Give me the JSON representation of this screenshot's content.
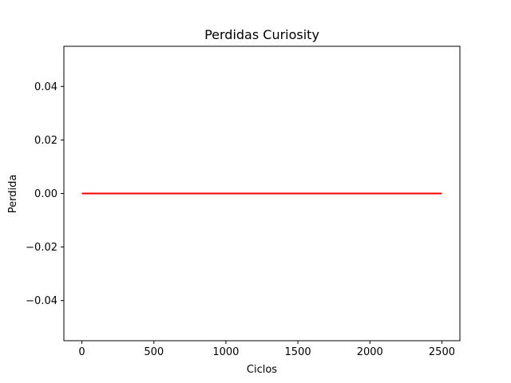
{
  "chart_data": {
    "type": "line",
    "title": "Perdidas Curiosity",
    "xlabel": "Ciclos",
    "ylabel": "Perdida",
    "xlim": [
      -125,
      2625
    ],
    "ylim": [
      -0.055,
      0.055
    ],
    "xticks": [
      0,
      500,
      1000,
      1500,
      2000,
      2500
    ],
    "xtick_labels": [
      "0",
      "500",
      "1000",
      "1500",
      "2000",
      "2500"
    ],
    "yticks": [
      -0.04,
      -0.02,
      0.0,
      0.02,
      0.04
    ],
    "ytick_labels": [
      "−0.04",
      "−0.02",
      "0.00",
      "0.02",
      "0.04"
    ],
    "grid": false,
    "series": [
      {
        "color": "#ff0000",
        "x": [
          0,
          2500
        ],
        "y": [
          0,
          0
        ]
      }
    ]
  }
}
